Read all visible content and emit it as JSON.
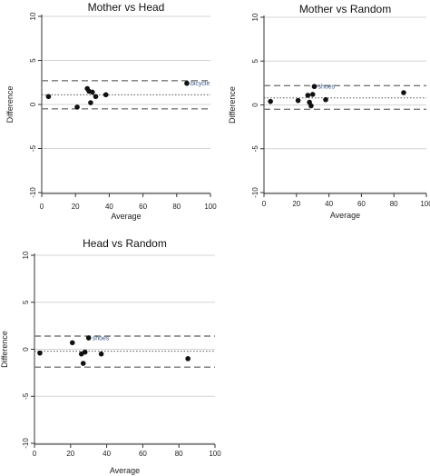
{
  "chart_data": [
    {
      "type": "scatter",
      "title": "Mother vs Head",
      "xlabel": "Average",
      "ylabel": "Difference",
      "xlim": [
        0,
        100
      ],
      "ylim": [
        -10,
        10
      ],
      "xticks": [
        0,
        20,
        40,
        60,
        80,
        100
      ],
      "yticks": [
        -10,
        -5,
        0,
        5,
        10
      ],
      "grid": true,
      "mean_line": 1.1,
      "limits_of_agreement": [
        -0.5,
        2.7
      ],
      "points": [
        {
          "x": 4,
          "y": 0.9
        },
        {
          "x": 21,
          "y": -0.3
        },
        {
          "x": 27,
          "y": 1.8
        },
        {
          "x": 28,
          "y": 1.5
        },
        {
          "x": 30,
          "y": 1.4
        },
        {
          "x": 29,
          "y": 0.2
        },
        {
          "x": 32,
          "y": 0.9
        },
        {
          "x": 38,
          "y": 1.1
        },
        {
          "x": 86,
          "y": 2.4,
          "label": "bicycle"
        }
      ]
    },
    {
      "type": "scatter",
      "title": "Mother vs Random",
      "xlabel": "Average",
      "ylabel": "Difference",
      "xlim": [
        0,
        100
      ],
      "ylim": [
        -10,
        10
      ],
      "xticks": [
        0,
        20,
        40,
        60,
        80,
        100
      ],
      "yticks": [
        -10,
        -5,
        0,
        5,
        10
      ],
      "grid": true,
      "mean_line": 0.8,
      "limits_of_agreement": [
        -0.5,
        2.2
      ],
      "points": [
        {
          "x": 4,
          "y": 0.4
        },
        {
          "x": 21,
          "y": 0.5
        },
        {
          "x": 27,
          "y": 1.1
        },
        {
          "x": 28,
          "y": 0.3
        },
        {
          "x": 29,
          "y": -0.1
        },
        {
          "x": 30,
          "y": 1.2
        },
        {
          "x": 31,
          "y": 2.1,
          "label": "shoes"
        },
        {
          "x": 38,
          "y": 0.6
        },
        {
          "x": 86,
          "y": 1.4
        }
      ]
    },
    {
      "type": "scatter",
      "title": "Head vs Random",
      "xlabel": "Average",
      "ylabel": "Difference",
      "xlim": [
        0,
        100
      ],
      "ylim": [
        -10,
        10
      ],
      "xticks": [
        0,
        20,
        40,
        60,
        80,
        100
      ],
      "yticks": [
        -10,
        -5,
        0,
        5,
        10
      ],
      "grid": true,
      "mean_line": -0.2,
      "limits_of_agreement": [
        -1.9,
        1.4
      ],
      "points": [
        {
          "x": 3,
          "y": -0.4
        },
        {
          "x": 21,
          "y": 0.7
        },
        {
          "x": 26,
          "y": -0.5
        },
        {
          "x": 27,
          "y": -1.5
        },
        {
          "x": 28,
          "y": -0.3
        },
        {
          "x": 30,
          "y": 1.2,
          "label": "shoes"
        },
        {
          "x": 37,
          "y": -0.5
        },
        {
          "x": 85,
          "y": -1.0
        }
      ]
    }
  ]
}
